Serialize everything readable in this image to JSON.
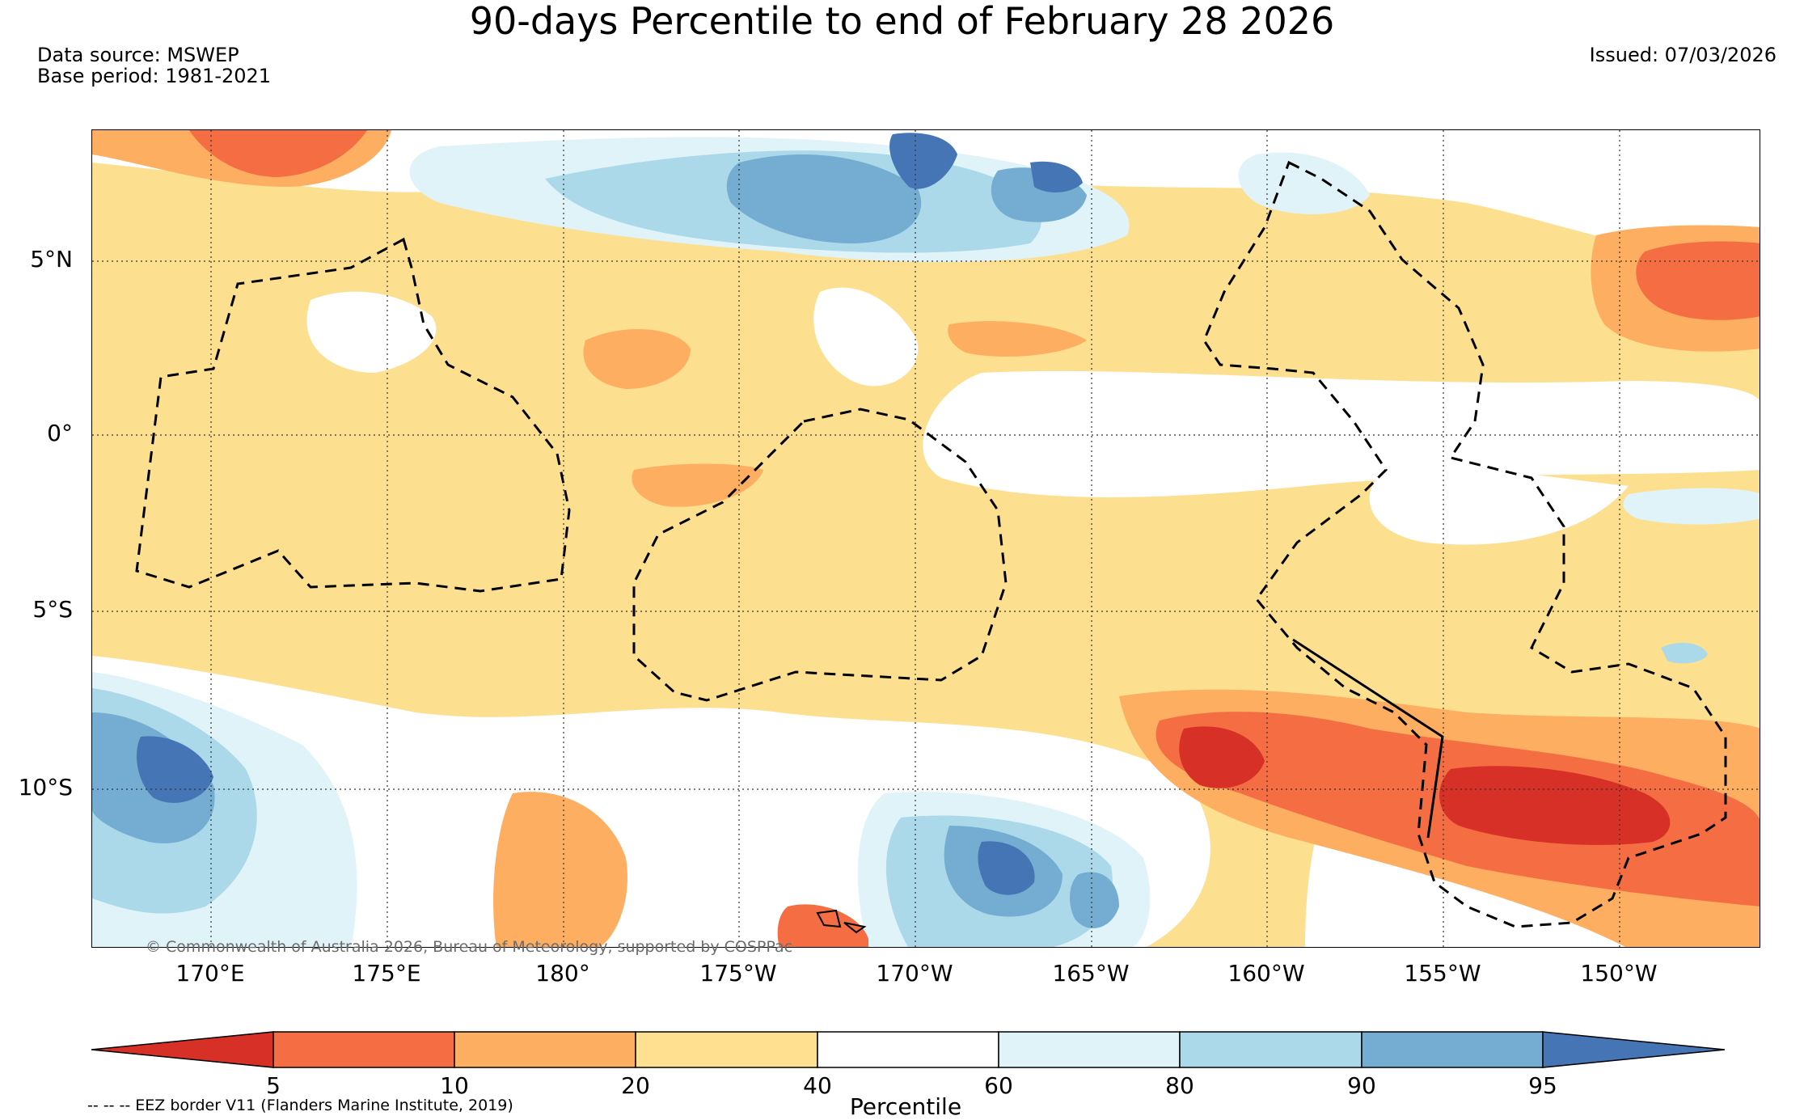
{
  "title": "90-days Percentile to end of February 28 2026",
  "data_source": "Data source: MSWEP",
  "base_period": "Base period: 1981-2021",
  "issued": "Issued: 07/03/2026",
  "copyright": "© Commonwealth of Australia 2026, Bureau of Meteorology, supported by COSPPac",
  "eez_note": "-- -- -- EEZ border V11 (Flanders Marine Institute, 2019)",
  "lat_labels": [
    "5°N",
    "0°",
    "5°S",
    "10°S"
  ],
  "lon_labels": [
    "170°E",
    "175°E",
    "180°",
    "175°W",
    "170°W",
    "165°W",
    "160°W",
    "155°W",
    "150°W"
  ],
  "colorbar": {
    "label": "Percentile",
    "ticks": [
      "5",
      "10",
      "20",
      "40",
      "60",
      "80",
      "90",
      "95"
    ],
    "colors": [
      "#D73027",
      "#F46D43",
      "#FDAE61",
      "#FEE090",
      "#FFFFFF",
      "#E0F3F8",
      "#ABD9E9",
      "#74ADD1",
      "#4575B4"
    ]
  }
}
